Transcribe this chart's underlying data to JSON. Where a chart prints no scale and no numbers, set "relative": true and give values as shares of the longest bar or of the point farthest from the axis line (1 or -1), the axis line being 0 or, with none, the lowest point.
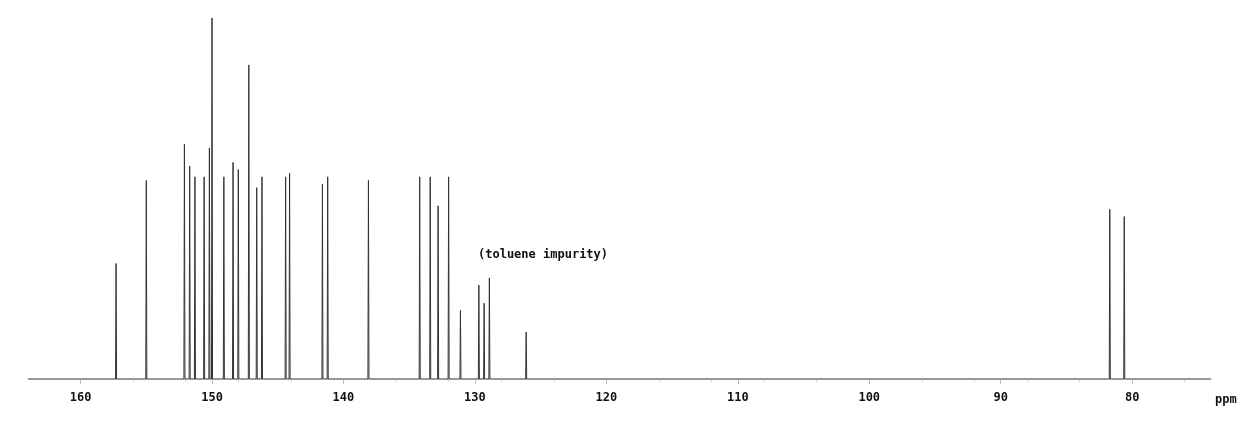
{
  "chart_data": {
    "type": "line",
    "xlabel": "ppm",
    "relative": true,
    "xlim": [
      164,
      74
    ],
    "xticks": [
      160,
      150,
      140,
      130,
      120,
      110,
      100,
      90,
      80
    ],
    "grid": false,
    "marker": "none",
    "line_style": "solid",
    "annotations": [
      "(toluene impurity)"
    ],
    "series": [
      {
        "color": "#333333",
        "x": [
          164,
          157.34,
          157.3,
          157.26,
          155.04,
          155,
          154.96,
          152.14,
          152.1,
          152.06,
          151.74,
          151.7,
          151.66,
          151.34,
          151.3,
          151.26,
          150.64,
          150.6,
          150.56,
          150.24,
          150.2,
          150.16,
          150.04,
          150,
          149.96,
          149.14,
          149.1,
          149.06,
          148.44,
          148.4,
          148.36,
          148.04,
          148,
          147.96,
          147.24,
          147.2,
          147.16,
          146.64,
          146.6,
          146.56,
          146.24,
          146.2,
          146.16,
          144.44,
          144.4,
          144.36,
          144.14,
          144.1,
          144.06,
          141.64,
          141.6,
          141.56,
          141.24,
          141.2,
          141.16,
          138.14,
          138.1,
          138.06,
          134.24,
          134.2,
          134.16,
          133.44,
          133.4,
          133.36,
          132.84,
          132.8,
          132.76,
          132.04,
          132,
          131.96,
          131.14,
          131.1,
          131.06,
          129.74,
          129.7,
          129.66,
          129.34,
          129.3,
          129.26,
          128.94,
          128.9,
          128.86,
          126.14,
          126.1,
          126.06,
          81.74,
          81.7,
          81.66,
          80.64,
          80.6,
          80.56,
          74
        ],
        "values": [
          0,
          0,
          0.32,
          0,
          0,
          0.55,
          0,
          0,
          0.65,
          0,
          0,
          0.59,
          0,
          0,
          0.56,
          0,
          0,
          0.56,
          0,
          0,
          0.64,
          0,
          0,
          1,
          0,
          0,
          0.56,
          0,
          0,
          0.6,
          0,
          0,
          0.58,
          0,
          0,
          0.87,
          0,
          0,
          0.53,
          0,
          0,
          0.56,
          0,
          0,
          0.56,
          0,
          0,
          0.57,
          0,
          0,
          0.54,
          0,
          0,
          0.56,
          0,
          0,
          0.55,
          0,
          0,
          0.56,
          0,
          0,
          0.56,
          0,
          0,
          0.48,
          0,
          0,
          0.56,
          0,
          0,
          0.19,
          0,
          0,
          0.26,
          0,
          0,
          0.21,
          0,
          0,
          0.28,
          0,
          0,
          0.13,
          0,
          0,
          0.47,
          0,
          0,
          0.45,
          0,
          0
        ]
      }
    ]
  }
}
